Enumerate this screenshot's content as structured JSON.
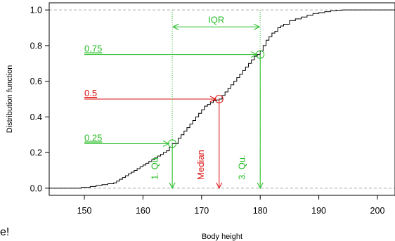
{
  "edge_text": "e!",
  "chart_data": {
    "type": "line",
    "title": "",
    "xlabel": "Body height",
    "ylabel": "Distribution function",
    "xlim": [
      144,
      203
    ],
    "ylim": [
      -0.04,
      1.04
    ],
    "x_ticks": [
      150,
      160,
      170,
      180,
      190,
      200
    ],
    "y_ticks": [
      0.0,
      0.2,
      0.4,
      0.6,
      0.8,
      1.0
    ],
    "x_tick_labels": [
      "150",
      "160",
      "170",
      "180",
      "190",
      "200"
    ],
    "y_tick_labels": [
      "0.0",
      "0.2",
      "0.4",
      "0.6",
      "0.8",
      "1.0"
    ],
    "reference_lines_y": [
      0,
      1
    ],
    "ecdf": {
      "color": "#000000",
      "x": [
        144,
        149.5,
        151,
        152,
        153,
        154,
        155,
        155.5,
        156,
        156.5,
        157,
        157.5,
        158,
        158.5,
        159,
        159.5,
        160,
        160.5,
        161,
        161.5,
        162,
        162.5,
        163,
        163.5,
        164,
        164.5,
        165,
        166,
        166.5,
        167,
        167.5,
        168,
        168.5,
        169,
        169.5,
        170,
        170.5,
        171,
        171.5,
        172,
        172.5,
        173,
        173.5,
        174,
        174.5,
        175,
        175.5,
        176,
        176.5,
        177,
        177.5,
        178,
        178.5,
        179,
        179.5,
        180,
        180.5,
        181,
        181.5,
        182,
        182.5,
        183,
        183.5,
        184,
        185,
        186,
        187,
        188,
        189,
        190,
        191,
        192,
        193,
        194,
        203
      ],
      "y": [
        0.0,
        0.005,
        0.01,
        0.015,
        0.02,
        0.025,
        0.03,
        0.04,
        0.05,
        0.06,
        0.07,
        0.08,
        0.09,
        0.1,
        0.11,
        0.12,
        0.13,
        0.14,
        0.15,
        0.16,
        0.17,
        0.18,
        0.19,
        0.2,
        0.21,
        0.23,
        0.25,
        0.28,
        0.3,
        0.32,
        0.34,
        0.36,
        0.38,
        0.4,
        0.42,
        0.44,
        0.46,
        0.47,
        0.48,
        0.49,
        0.495,
        0.5,
        0.52,
        0.54,
        0.56,
        0.58,
        0.6,
        0.62,
        0.64,
        0.66,
        0.68,
        0.7,
        0.72,
        0.74,
        0.75,
        0.77,
        0.8,
        0.83,
        0.85,
        0.87,
        0.88,
        0.9,
        0.91,
        0.92,
        0.94,
        0.95,
        0.96,
        0.97,
        0.98,
        0.985,
        0.99,
        0.995,
        0.998,
        1.0,
        1.0
      ]
    },
    "iqr": {
      "label": "IQR",
      "from": 165,
      "to": 180,
      "y": 0.905,
      "color": "#22bb22"
    },
    "quantiles": [
      {
        "label": "0.25",
        "p": 0.25,
        "x": 165,
        "color": "#22bb22",
        "drop_label": "1. Qu.",
        "label_x": 150,
        "drop_label_x": 162.5
      },
      {
        "label": "0.5",
        "p": 0.5,
        "x": 173,
        "color": "#dd1111",
        "drop_label": "Median",
        "label_x": 150,
        "drop_label_x": 170.4
      },
      {
        "label": "0.75",
        "p": 0.75,
        "x": 180,
        "color": "#22bb22",
        "drop_label": "3. Qu.",
        "label_x": 150,
        "drop_label_x": 177.4
      }
    ]
  }
}
